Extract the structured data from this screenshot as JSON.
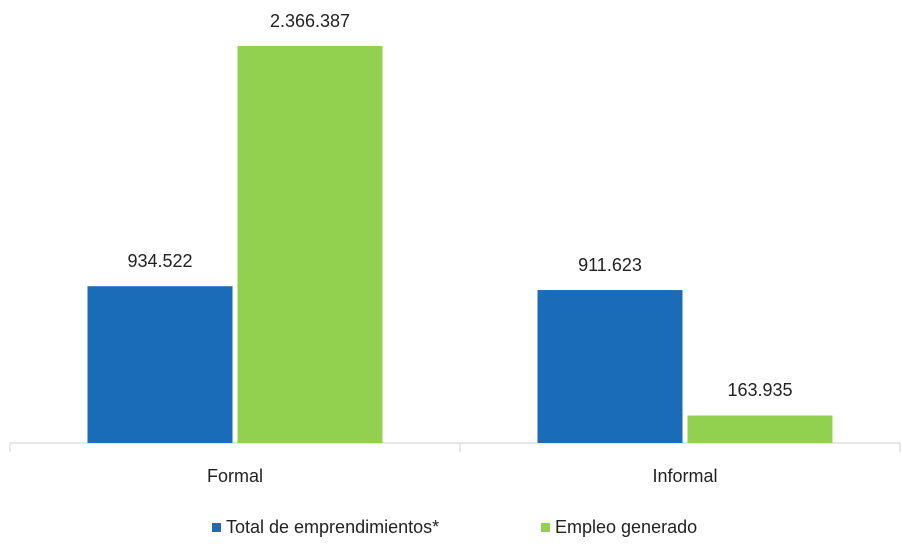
{
  "chart_data": {
    "type": "bar",
    "categories": [
      "Formal",
      "Informal"
    ],
    "series": [
      {
        "name": "Total de emprendimientos*",
        "color": "#1a6bb8",
        "values": [
          934522,
          911623
        ],
        "value_labels": [
          "934.522",
          "911.623"
        ]
      },
      {
        "name": "Empleo generado",
        "color": "#92d050",
        "values": [
          2366387,
          163935
        ],
        "value_labels": [
          "2.366.387",
          "163.935"
        ]
      }
    ],
    "legend": "bottom"
  }
}
